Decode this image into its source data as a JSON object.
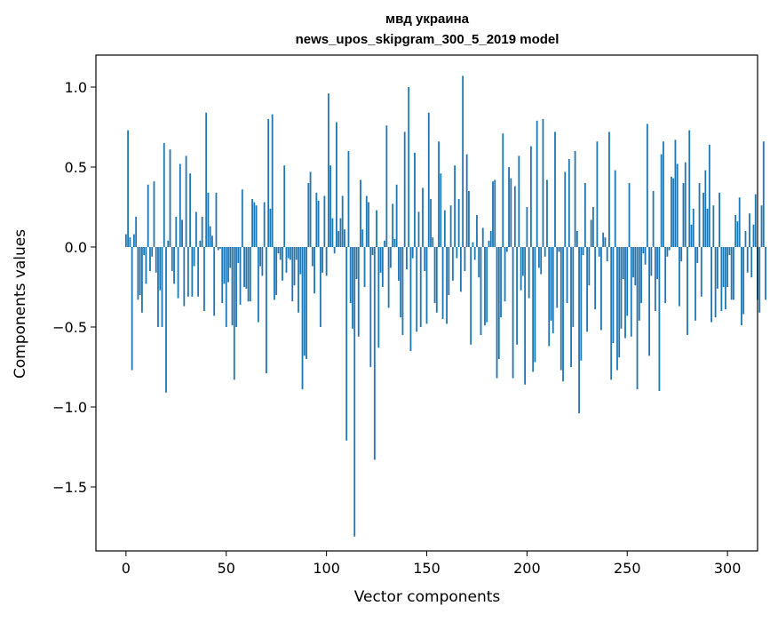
{
  "chart_data": {
    "type": "bar",
    "title_line1": "мвд украина",
    "title_line2": "news_upos_skipgram_300_5_2019 model",
    "xlabel": "Vector components",
    "ylabel": "Components values",
    "xlim": [
      -15,
      315
    ],
    "ylim": [
      -1.9,
      1.2
    ],
    "xticks": [
      0,
      50,
      100,
      150,
      200,
      250,
      300
    ],
    "xtick_labels": [
      "0",
      "50",
      "100",
      "150",
      "200",
      "250",
      "300"
    ],
    "yticks": [
      1.0,
      0.5,
      0.0,
      -0.5,
      -1.0,
      -1.5
    ],
    "ytick_labels": [
      "1.0",
      "0.5",
      "0.0",
      "−0.5",
      "−1.0",
      "−1.5"
    ],
    "bar_color": "#1f77b4",
    "values": [
      0.08,
      0.73,
      0.06,
      -0.77,
      0.08,
      0.19,
      -0.33,
      -0.3,
      -0.41,
      -0.05,
      -0.23,
      0.39,
      -0.15,
      -0.06,
      0.41,
      -0.16,
      -0.5,
      -0.27,
      -0.5,
      0.65,
      -0.91,
      0.04,
      0.61,
      -0.15,
      -0.23,
      0.19,
      -0.32,
      0.52,
      0.17,
      -0.37,
      0.57,
      -0.31,
      0.46,
      -0.31,
      -0.12,
      0.22,
      -0.31,
      0.04,
      0.19,
      -0.4,
      0.84,
      0.34,
      0.13,
      0.07,
      -0.43,
      0.34,
      -0.02,
      -0.01,
      -0.35,
      -0.23,
      -0.5,
      -0.22,
      -0.13,
      -0.49,
      -0.83,
      -0.5,
      -0.1,
      -0.36,
      0.36,
      -0.25,
      -0.26,
      -0.34,
      -0.34,
      0.3,
      0.28,
      0.26,
      -0.47,
      -0.12,
      -0.18,
      0.28,
      -0.79,
      0.8,
      0.24,
      0.83,
      -0.33,
      -0.3,
      -0.04,
      -0.08,
      -0.21,
      0.51,
      -0.16,
      -0.07,
      -0.08,
      -0.34,
      -0.24,
      -0.08,
      -0.41,
      -0.17,
      -0.89,
      -0.68,
      -0.7,
      0.4,
      0.47,
      -0.12,
      -0.29,
      0.34,
      0.29,
      -0.5,
      -0.16,
      0.32,
      -0.18,
      0.96,
      0.51,
      0.18,
      -0.04,
      0.78,
      0.1,
      0.18,
      0.32,
      0.11,
      -1.21,
      0.6,
      -0.35,
      -0.51,
      -1.81,
      -0.2,
      -0.56,
      0.42,
      0.11,
      -0.25,
      0.32,
      0.28,
      -0.75,
      -0.05,
      -1.33,
      0.23,
      -0.63,
      -0.16,
      -0.25,
      0.04,
      0.76,
      -0.38,
      -0.13,
      0.27,
      0.05,
      0.39,
      -0.21,
      -0.44,
      -0.55,
      0.72,
      -0.14,
      1.0,
      -0.65,
      -0.07,
      0.59,
      -0.53,
      0.22,
      -0.5,
      0.37,
      -0.15,
      -0.48,
      0.84,
      0.3,
      0.06,
      -0.35,
      -0.41,
      0.66,
      0.46,
      -0.45,
      0.23,
      -0.48,
      -0.3,
      0.26,
      -0.21,
      0.51,
      -0.07,
      0.3,
      -0.28,
      1.07,
      -0.15,
      0.58,
      0.35,
      -0.61,
      0.03,
      -0.08,
      0.2,
      -0.19,
      -0.55,
      0.12,
      -0.49,
      -0.47,
      0.04,
      0.1,
      0.41,
      0.42,
      -0.82,
      -0.7,
      -0.44,
      0.71,
      -0.34,
      -0.03,
      0.5,
      0.43,
      -0.82,
      0.38,
      -0.61,
      0.57,
      -0.27,
      -0.18,
      -0.86,
      0.25,
      -0.32,
      0.63,
      -0.78,
      -0.72,
      0.79,
      -0.13,
      -0.17,
      0.8,
      -0.06,
      0.42,
      -0.62,
      -0.46,
      -0.54,
      0.72,
      -0.38,
      -0.03,
      -0.77,
      -0.84,
      0.47,
      -0.35,
      0.55,
      -0.75,
      -0.5,
      0.6,
      0.1,
      -1.04,
      -0.71,
      -0.05,
      0.4,
      -0.53,
      -0.24,
      0.17,
      0.25,
      -0.39,
      0.66,
      -0.06,
      -0.52,
      0.09,
      0.06,
      -0.09,
      0.72,
      -0.83,
      -0.6,
      0.48,
      -0.77,
      -0.69,
      -0.51,
      -0.2,
      -0.57,
      -0.43,
      0.4,
      -0.56,
      -0.19,
      -0.24,
      -0.89,
      -0.46,
      -0.35,
      -0.04,
      -0.11,
      0.77,
      -0.68,
      -0.18,
      0.35,
      -0.4,
      -0.2,
      -0.9,
      0.58,
      0.66,
      -0.35,
      -0.06,
      -0.02,
      0.44,
      0.43,
      0.67,
      0.52,
      -0.37,
      -0.09,
      0.4,
      0.53,
      -0.55,
      0.73,
      0.14,
      0.24,
      -0.46,
      -0.1,
      0.4,
      -0.31,
      0.34,
      0.48,
      0.24,
      0.64,
      -0.47,
      0.26,
      -0.44,
      -0.26,
      0.34,
      -0.4,
      -0.25,
      -0.39,
      -0.25,
      -0.05,
      -0.33,
      -0.33,
      0.2,
      0.16,
      0.31,
      -0.49,
      -0.42,
      0.1,
      -0.16,
      0.21,
      -0.19,
      0.14,
      0.33,
      -0.33,
      -0.41,
      0.26,
      0.66,
      -0.33
    ]
  }
}
